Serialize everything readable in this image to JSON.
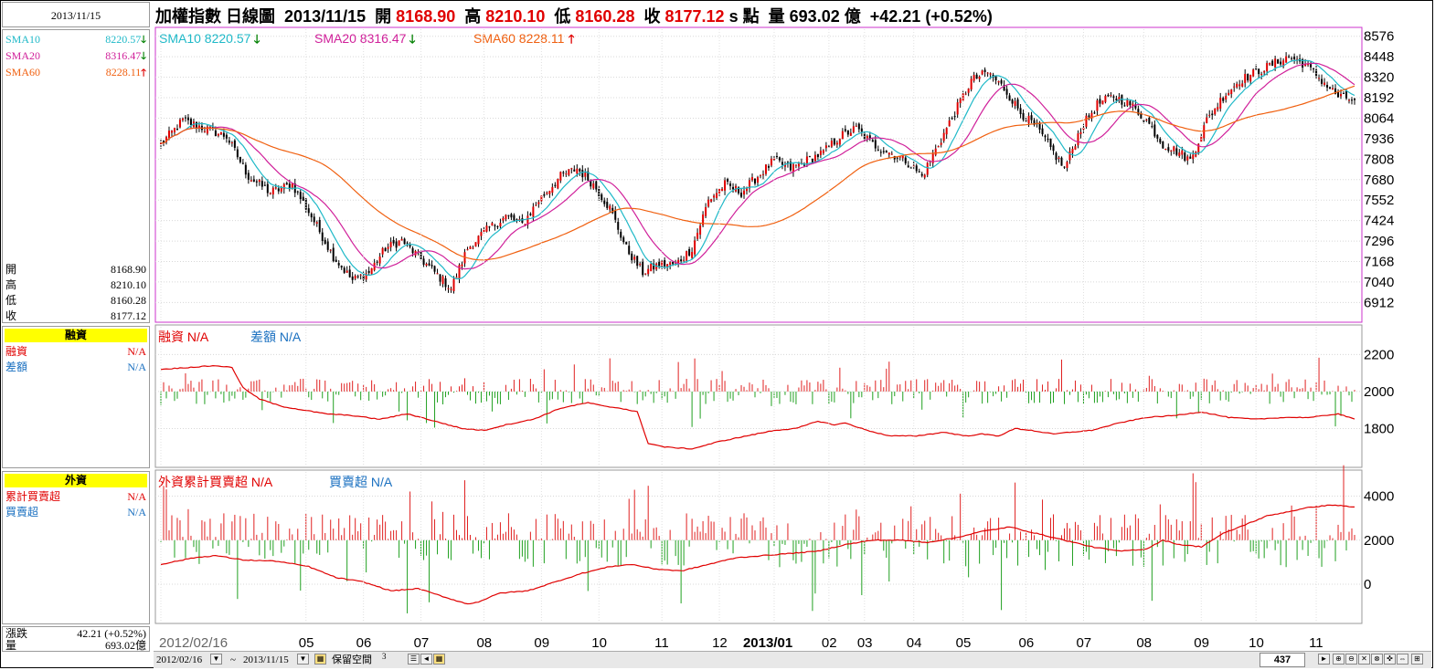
{
  "date_box": "2013/11/15",
  "header": {
    "title": "加權指數",
    "period": "日線圖",
    "date": "2013/11/15",
    "open_label": "開",
    "open": "8168.90",
    "high_label": "高",
    "high": "8210.10",
    "low_label": "低",
    "low": "8160.28",
    "close_label": "收",
    "close": "8177.12",
    "unit_s": "s",
    "unit_pt": "點",
    "vol_label": "量",
    "volume": "693.02",
    "vol_unit": "億",
    "change": "+42.21",
    "change_pct": "(+0.52%)"
  },
  "sma": {
    "sma10_label": "SMA10",
    "sma10": "8220.57",
    "sma10_color": "#1fb9c8",
    "sma20_label": "SMA20",
    "sma20": "8316.47",
    "sma20_color": "#d0209a",
    "sma60_label": "SMA60",
    "sma60": "8228.11",
    "sma60_color": "#f06010",
    "arrow_down": "🡓",
    "arrow_up": "🡑",
    "arrow_down_color": "#008000",
    "arrow_up_color": "#e00000"
  },
  "ohlc_panel": [
    {
      "label": "開",
      "value": "8168.90"
    },
    {
      "label": "高",
      "value": "8210.10"
    },
    {
      "label": "低",
      "value": "8160.28"
    },
    {
      "label": "收",
      "value": "8177.12"
    }
  ],
  "margin_panel": {
    "title": "融資",
    "rows": [
      {
        "label": "融資",
        "value": "N/A",
        "color": "#e00000"
      },
      {
        "label": "差額",
        "value": "N/A",
        "color": "#1a70c0"
      }
    ],
    "legend": [
      {
        "text": "融資 N/A",
        "color": "#e00000"
      },
      {
        "text": "差額 N/A",
        "color": "#1a70c0"
      }
    ]
  },
  "foreign_panel": {
    "title": "外資",
    "rows": [
      {
        "label": "累計買賣超",
        "value": "N/A",
        "color": "#e00000"
      },
      {
        "label": "買賣超",
        "value": "N/A",
        "color": "#1a70c0"
      }
    ],
    "legend": [
      {
        "text": "外資累計買賣超 N/A",
        "color": "#e00000"
      },
      {
        "text": "買賣超 N/A",
        "color": "#1a70c0"
      }
    ]
  },
  "bottom_panel": {
    "change_label": "漲跌",
    "change_value": "42.21 (+0.52%)",
    "volume_label": "量",
    "volume_value": "693.02億"
  },
  "bottom_bar": {
    "start_date": "2012/02/16",
    "tilde": "~",
    "end_date": "2013/11/15",
    "keep_space": "保留空間",
    "keep_space_num": "3",
    "count": "437"
  },
  "chart_data": [
    {
      "type": "candlestick",
      "title": "",
      "ylim": [
        6800,
        8620
      ],
      "yticks": [
        8576,
        8448,
        8320,
        8192,
        8064,
        7936,
        7808,
        7680,
        7552,
        7424,
        7296,
        7168,
        7040,
        6912
      ],
      "x_labels": [
        "2012/02/16",
        "05",
        "06",
        "07",
        "08",
        "09",
        "10",
        "11",
        "12",
        "2013/01",
        "02",
        "03",
        "04",
        "05",
        "06",
        "07",
        "08",
        "09",
        "10",
        "11"
      ],
      "x_label_index": [
        0,
        53,
        74,
        95,
        118,
        139,
        160,
        183,
        204,
        224,
        244,
        257,
        275,
        293,
        316,
        337,
        359,
        380,
        400,
        422
      ],
      "close_anchors": [
        [
          0,
          7900
        ],
        [
          8,
          8050
        ],
        [
          16,
          8000
        ],
        [
          24,
          7950
        ],
        [
          32,
          7700
        ],
        [
          40,
          7600
        ],
        [
          48,
          7650
        ],
        [
          55,
          7450
        ],
        [
          63,
          7200
        ],
        [
          70,
          7050
        ],
        [
          76,
          7100
        ],
        [
          82,
          7250
        ],
        [
          88,
          7300
        ],
        [
          94,
          7200
        ],
        [
          100,
          7100
        ],
        [
          106,
          7000
        ],
        [
          112,
          7250
        ],
        [
          118,
          7350
        ],
        [
          126,
          7450
        ],
        [
          132,
          7400
        ],
        [
          138,
          7550
        ],
        [
          146,
          7700
        ],
        [
          152,
          7750
        ],
        [
          158,
          7650
        ],
        [
          164,
          7500
        ],
        [
          170,
          7250
        ],
        [
          176,
          7100
        ],
        [
          182,
          7150
        ],
        [
          188,
          7150
        ],
        [
          194,
          7250
        ],
        [
          200,
          7550
        ],
        [
          206,
          7650
        ],
        [
          212,
          7600
        ],
        [
          218,
          7700
        ],
        [
          224,
          7800
        ],
        [
          230,
          7750
        ],
        [
          236,
          7800
        ],
        [
          242,
          7850
        ],
        [
          248,
          7950
        ],
        [
          254,
          8000
        ],
        [
          260,
          7900
        ],
        [
          266,
          7850
        ],
        [
          272,
          7800
        ],
        [
          278,
          7700
        ],
        [
          284,
          7900
        ],
        [
          290,
          8100
        ],
        [
          296,
          8300
        ],
        [
          302,
          8350
        ],
        [
          308,
          8250
        ],
        [
          314,
          8100
        ],
        [
          320,
          8000
        ],
        [
          326,
          7850
        ],
        [
          330,
          7750
        ],
        [
          336,
          8000
        ],
        [
          342,
          8150
        ],
        [
          348,
          8200
        ],
        [
          354,
          8150
        ],
        [
          360,
          8050
        ],
        [
          366,
          7900
        ],
        [
          372,
          7850
        ],
        [
          376,
          7800
        ],
        [
          382,
          8050
        ],
        [
          388,
          8200
        ],
        [
          394,
          8300
        ],
        [
          400,
          8350
        ],
        [
          406,
          8400
        ],
        [
          412,
          8450
        ],
        [
          418,
          8400
        ],
        [
          424,
          8300
        ],
        [
          430,
          8200
        ],
        [
          436,
          8177
        ]
      ],
      "sma10_last": 8220.57,
      "sma20_last": 8316.47,
      "sma60_last": 8228.11
    },
    {
      "type": "bar+line",
      "title": "融資",
      "ylim": [
        1600,
        2350
      ],
      "yticks": [
        2200,
        2000,
        1800
      ],
      "line_anchors": [
        [
          0,
          2120
        ],
        [
          10,
          2130
        ],
        [
          20,
          2140
        ],
        [
          26,
          2130
        ],
        [
          30,
          2020
        ],
        [
          36,
          1960
        ],
        [
          44,
          1920
        ],
        [
          52,
          1900
        ],
        [
          60,
          1880
        ],
        [
          70,
          1870
        ],
        [
          80,
          1850
        ],
        [
          90,
          1880
        ],
        [
          100,
          1840
        ],
        [
          110,
          1800
        ],
        [
          118,
          1790
        ],
        [
          126,
          1820
        ],
        [
          136,
          1850
        ],
        [
          146,
          1910
        ],
        [
          156,
          1940
        ],
        [
          162,
          1920
        ],
        [
          168,
          1910
        ],
        [
          174,
          1890
        ],
        [
          178,
          1720
        ],
        [
          184,
          1700
        ],
        [
          194,
          1690
        ],
        [
          204,
          1730
        ],
        [
          214,
          1760
        ],
        [
          224,
          1790
        ],
        [
          232,
          1800
        ],
        [
          240,
          1840
        ],
        [
          246,
          1820
        ],
        [
          250,
          1830
        ],
        [
          258,
          1790
        ],
        [
          266,
          1760
        ],
        [
          276,
          1760
        ],
        [
          286,
          1780
        ],
        [
          294,
          1760
        ],
        [
          300,
          1770
        ],
        [
          306,
          1760
        ],
        [
          312,
          1800
        ],
        [
          318,
          1790
        ],
        [
          326,
          1770
        ],
        [
          332,
          1780
        ],
        [
          340,
          1790
        ],
        [
          350,
          1830
        ],
        [
          360,
          1860
        ],
        [
          370,
          1870
        ],
        [
          380,
          1890
        ],
        [
          390,
          1860
        ],
        [
          400,
          1850
        ],
        [
          410,
          1860
        ],
        [
          420,
          1860
        ],
        [
          430,
          1880
        ],
        [
          436,
          1850
        ]
      ]
    },
    {
      "type": "bar+line",
      "title": "外資",
      "ylim": [
        -1700,
        5100
      ],
      "yticks": [
        4000,
        2000,
        0
      ],
      "line_anchors": [
        [
          0,
          900
        ],
        [
          12,
          1200
        ],
        [
          20,
          1300
        ],
        [
          30,
          1100
        ],
        [
          42,
          1050
        ],
        [
          54,
          800
        ],
        [
          64,
          300
        ],
        [
          74,
          100
        ],
        [
          84,
          -300
        ],
        [
          94,
          -200
        ],
        [
          104,
          -600
        ],
        [
          112,
          -900
        ],
        [
          116,
          -800
        ],
        [
          124,
          -400
        ],
        [
          134,
          -300
        ],
        [
          144,
          100
        ],
        [
          154,
          500
        ],
        [
          164,
          800
        ],
        [
          172,
          900
        ],
        [
          180,
          700
        ],
        [
          190,
          600
        ],
        [
          200,
          900
        ],
        [
          210,
          1200
        ],
        [
          220,
          1300
        ],
        [
          230,
          1400
        ],
        [
          240,
          1500
        ],
        [
          250,
          1800
        ],
        [
          260,
          2000
        ],
        [
          270,
          2000
        ],
        [
          280,
          1900
        ],
        [
          290,
          2100
        ],
        [
          300,
          2400
        ],
        [
          310,
          2600
        ],
        [
          320,
          2300
        ],
        [
          330,
          2000
        ],
        [
          340,
          1700
        ],
        [
          350,
          1500
        ],
        [
          360,
          1600
        ],
        [
          366,
          2000
        ],
        [
          372,
          1800
        ],
        [
          380,
          1700
        ],
        [
          388,
          2300
        ],
        [
          396,
          2700
        ],
        [
          404,
          3100
        ],
        [
          412,
          3300
        ],
        [
          420,
          3500
        ],
        [
          428,
          3600
        ],
        [
          436,
          3500
        ]
      ]
    }
  ]
}
